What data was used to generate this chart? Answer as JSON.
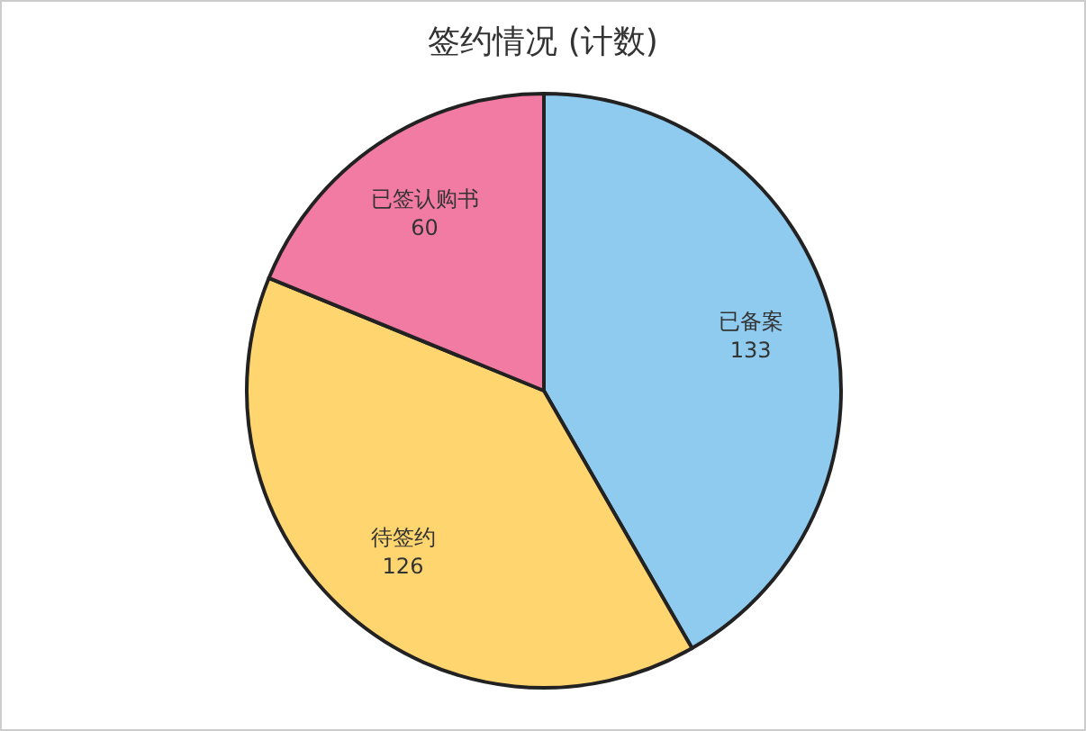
{
  "chart_data": {
    "type": "pie",
    "title": "签约情况 (计数)",
    "categories": [
      "已备案",
      "待签约",
      "已签认购书"
    ],
    "values": [
      133,
      126,
      60
    ],
    "colors": [
      "#8fcbef",
      "#ffd56f",
      "#f27ba4"
    ],
    "data_labels": true
  }
}
